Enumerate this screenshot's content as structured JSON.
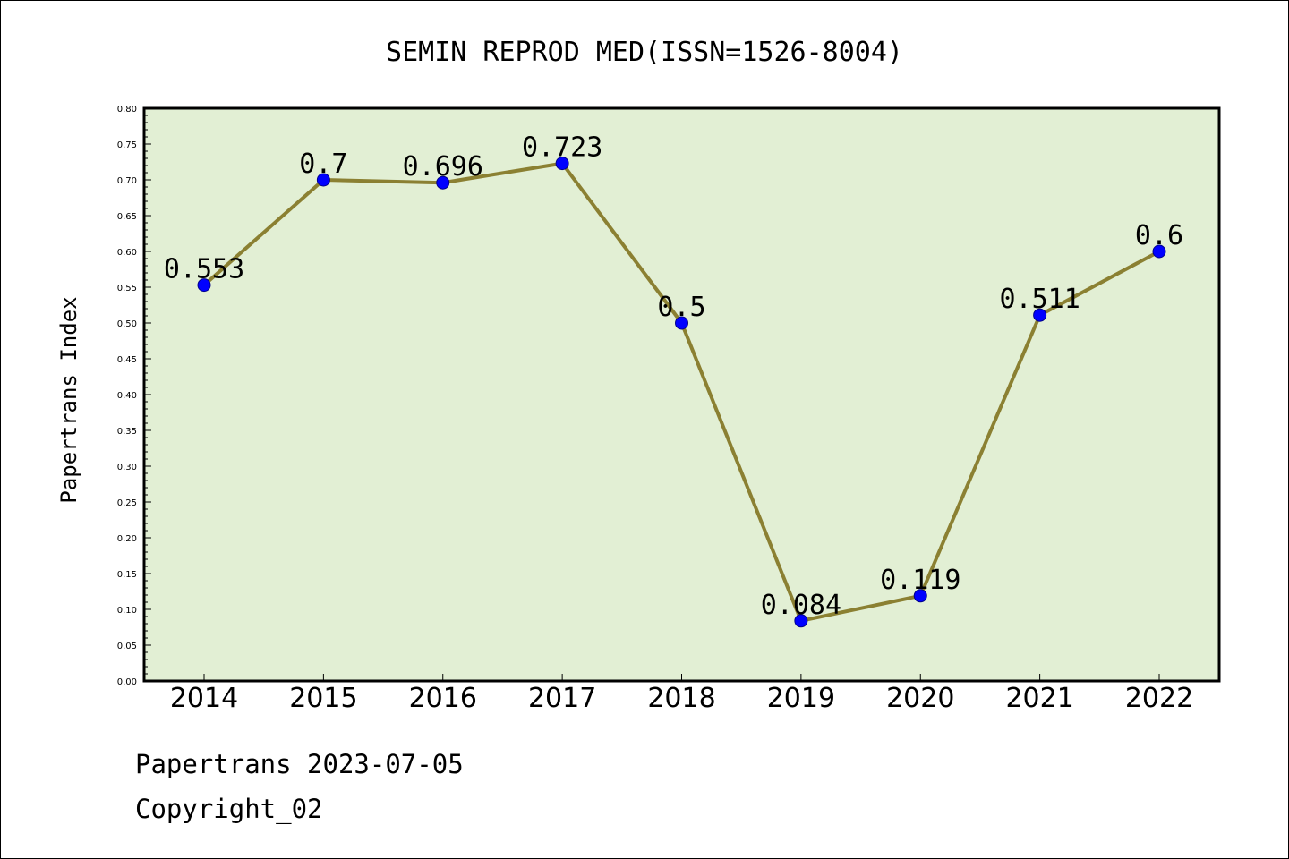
{
  "chart_data": {
    "type": "line",
    "title": "SEMIN REPROD MED(ISSN=1526-8004)",
    "xlabel": "",
    "ylabel": "Papertrans Index",
    "categories": [
      "2014",
      "2015",
      "2016",
      "2017",
      "2018",
      "2019",
      "2020",
      "2021",
      "2022"
    ],
    "values": [
      0.553,
      0.7,
      0.696,
      0.723,
      0.5,
      0.084,
      0.119,
      0.511,
      0.6
    ],
    "data_labels": [
      "0.553",
      "0.7",
      "0.696",
      "0.723",
      "0.5",
      "0.084",
      "0.119",
      "0.511",
      "0.6"
    ],
    "ylim": [
      0,
      0.8
    ],
    "yticks": [
      "0.00",
      "0.05",
      "0.10",
      "0.15",
      "0.20",
      "0.25",
      "0.30",
      "0.35",
      "0.40",
      "0.45",
      "0.50",
      "0.55",
      "0.60",
      "0.65",
      "0.70",
      "0.75",
      "0.80"
    ],
    "grid": false,
    "legend": "none",
    "colors": {
      "line": "#8b8032",
      "marker": "#0000ff",
      "plot_background": "#e2efd4",
      "frame": "#000000"
    }
  },
  "footer": {
    "line1": "Papertrans 2023-07-05",
    "line2": "Copyright_02"
  }
}
